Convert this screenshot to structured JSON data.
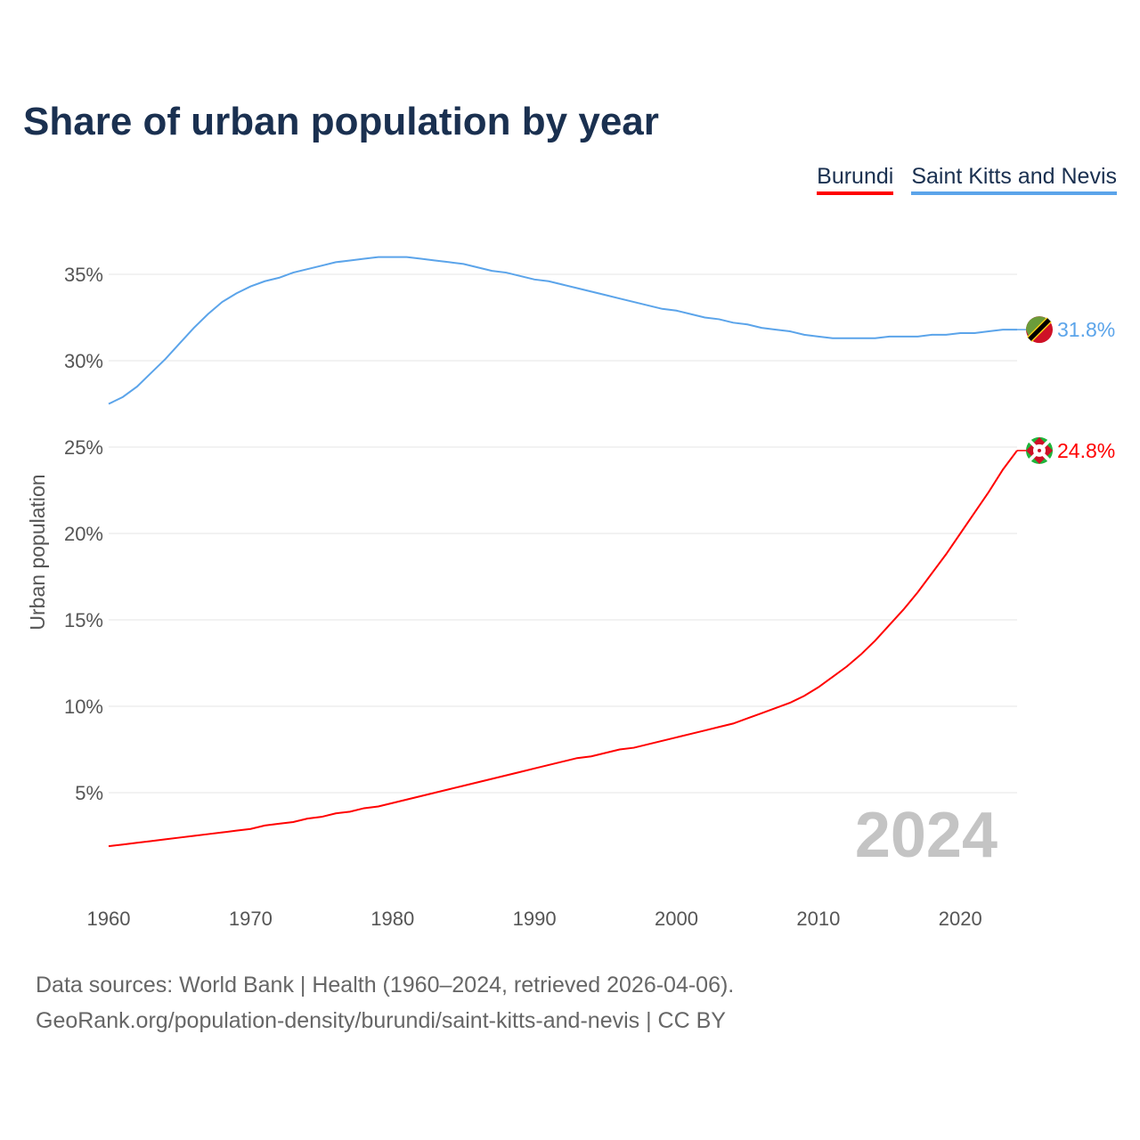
{
  "chart_data": {
    "type": "line",
    "title": "Share of urban population by year",
    "xlabel": "",
    "ylabel": "Urban population",
    "xlim": [
      1960,
      2024
    ],
    "ylim": [
      0,
      37
    ],
    "x_ticks": [
      "1960",
      "1970",
      "1980",
      "1990",
      "2000",
      "2010",
      "2020"
    ],
    "x_tick_values": [
      1960,
      1970,
      1980,
      1990,
      2000,
      2010,
      2020
    ],
    "y_ticks": [
      "5%",
      "10%",
      "15%",
      "20%",
      "25%",
      "30%",
      "35%"
    ],
    "y_tick_values": [
      5,
      10,
      15,
      20,
      25,
      30,
      35
    ],
    "grid": true,
    "legend_position": "top-right",
    "year_watermark": "2024",
    "x": [
      1960,
      1961,
      1962,
      1963,
      1964,
      1965,
      1966,
      1967,
      1968,
      1969,
      1970,
      1971,
      1972,
      1973,
      1974,
      1975,
      1976,
      1977,
      1978,
      1979,
      1980,
      1981,
      1982,
      1983,
      1984,
      1985,
      1986,
      1987,
      1988,
      1989,
      1990,
      1991,
      1992,
      1993,
      1994,
      1995,
      1996,
      1997,
      1998,
      1999,
      2000,
      2001,
      2002,
      2003,
      2004,
      2005,
      2006,
      2007,
      2008,
      2009,
      2010,
      2011,
      2012,
      2013,
      2014,
      2015,
      2016,
      2017,
      2018,
      2019,
      2020,
      2021,
      2022,
      2023,
      2024
    ],
    "series": [
      {
        "name": "Burundi",
        "color": "#ff0000",
        "end_label": "24.8%",
        "values": [
          1.9,
          2.0,
          2.1,
          2.2,
          2.3,
          2.4,
          2.5,
          2.6,
          2.7,
          2.8,
          2.9,
          3.1,
          3.2,
          3.3,
          3.5,
          3.6,
          3.8,
          3.9,
          4.1,
          4.2,
          4.4,
          4.6,
          4.8,
          5.0,
          5.2,
          5.4,
          5.6,
          5.8,
          6.0,
          6.2,
          6.4,
          6.6,
          6.8,
          7.0,
          7.1,
          7.3,
          7.5,
          7.6,
          7.8,
          8.0,
          8.2,
          8.4,
          8.6,
          8.8,
          9.0,
          9.3,
          9.6,
          9.9,
          10.2,
          10.6,
          11.1,
          11.7,
          12.3,
          13.0,
          13.8,
          14.7,
          15.6,
          16.6,
          17.7,
          18.8,
          20.0,
          21.2,
          22.4,
          23.7,
          24.8
        ]
      },
      {
        "name": "Saint Kitts and Nevis",
        "color": "#5ba4ea",
        "end_label": "31.8%",
        "values": [
          27.5,
          27.9,
          28.5,
          29.3,
          30.1,
          31.0,
          31.9,
          32.7,
          33.4,
          33.9,
          34.3,
          34.6,
          34.8,
          35.1,
          35.3,
          35.5,
          35.7,
          35.8,
          35.9,
          36.0,
          36.0,
          36.0,
          35.9,
          35.8,
          35.7,
          35.6,
          35.4,
          35.2,
          35.1,
          34.9,
          34.7,
          34.6,
          34.4,
          34.2,
          34.0,
          33.8,
          33.6,
          33.4,
          33.2,
          33.0,
          32.9,
          32.7,
          32.5,
          32.4,
          32.2,
          32.1,
          31.9,
          31.8,
          31.7,
          31.5,
          31.4,
          31.3,
          31.3,
          31.3,
          31.3,
          31.4,
          31.4,
          31.4,
          31.5,
          31.5,
          31.6,
          31.6,
          31.7,
          31.8,
          31.8
        ]
      }
    ]
  },
  "footer": {
    "line1": "Data sources: World Bank | Health (1960–2024, retrieved 2026-04-06).",
    "line2": "GeoRank.org/population-density/burundi/saint-kitts-and-nevis | CC BY"
  }
}
